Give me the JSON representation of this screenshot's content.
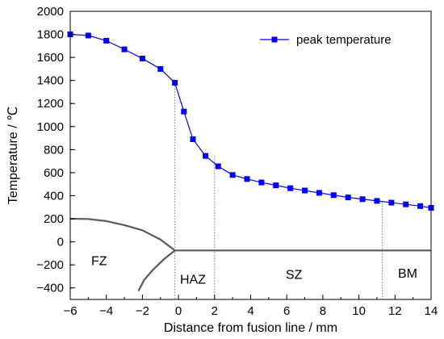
{
  "chart_data": {
    "type": "line",
    "xlabel": "Distance from fusion line / mm",
    "ylabel": "Temperature / ℃",
    "xlim": [
      -6,
      14
    ],
    "ylim": [
      -500,
      2000
    ],
    "xticks": [
      -6,
      -4,
      -2,
      0,
      2,
      4,
      6,
      8,
      10,
      12,
      14
    ],
    "yticks": [
      -400,
      -200,
      0,
      200,
      400,
      600,
      800,
      1000,
      1200,
      1400,
      1600,
      1800,
      2000
    ],
    "grid": false,
    "legend": {
      "placement": "top-right"
    },
    "series": [
      {
        "name": "peak temperature",
        "color": "#0000ff",
        "marker": "square",
        "x": [
          -6,
          -5,
          -4,
          -3,
          -2,
          -1,
          -0.2,
          0.3,
          0.8,
          1.5,
          2.2,
          3,
          3.8,
          4.6,
          5.4,
          6.2,
          7,
          7.8,
          8.6,
          9.4,
          10.2,
          11,
          11.8,
          12.6,
          13.4,
          14
        ],
        "y": [
          1800,
          1790,
          1745,
          1670,
          1590,
          1500,
          1380,
          1130,
          890,
          745,
          655,
          580,
          545,
          515,
          490,
          465,
          445,
          425,
          405,
          385,
          370,
          355,
          340,
          325,
          310,
          295
        ]
      }
    ],
    "reference_lines": [
      {
        "x": -0.2,
        "y_top": 1380
      },
      {
        "x": 2.0,
        "y_top": 745
      },
      {
        "x": 11.3,
        "y_top": 340
      }
    ],
    "boundaries": [
      {
        "x": [
          -6,
          -5,
          -4,
          -3,
          -2,
          -1,
          -0.2
        ],
        "y": [
          200,
          198,
          180,
          145,
          100,
          20,
          -75
        ]
      },
      {
        "x": [
          -0.2,
          -0.8,
          -1.4,
          -1.9,
          -2.2
        ],
        "y": [
          -75,
          -150,
          -240,
          -330,
          -420
        ]
      },
      {
        "x": [
          -0.2,
          14
        ],
        "y": [
          -75,
          -75
        ]
      }
    ],
    "zones": [
      {
        "label": "FZ",
        "x": -4.4,
        "y": -160
      },
      {
        "label": "HAZ",
        "x": 0.8,
        "y": -320
      },
      {
        "label": "SZ",
        "x": 6.4,
        "y": -280
      },
      {
        "label": "BM",
        "x": 12.7,
        "y": -270
      }
    ]
  }
}
